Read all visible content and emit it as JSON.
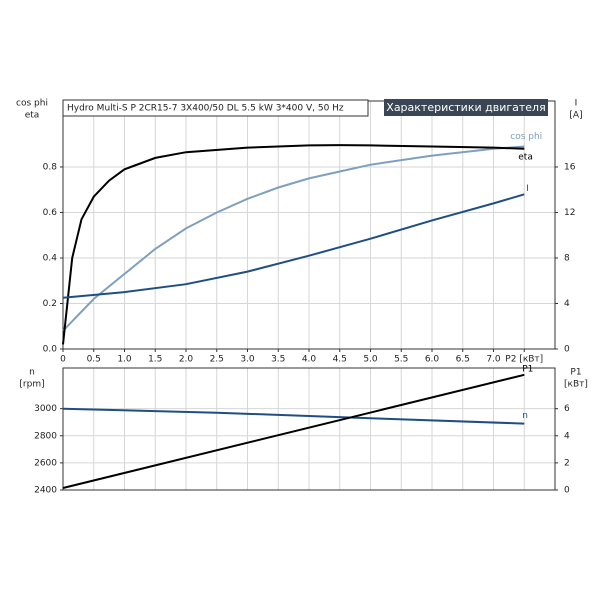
{
  "chart_data": [
    {
      "type": "line",
      "title": "Hydro Multi-S P 2CR15-7 3X400/50 DL   5.5 kW   3*400 V, 50 Hz",
      "subtitle": "Характеристики двигателя",
      "ylabel": [
        "cos phi",
        "eta"
      ],
      "y2label": [
        "I",
        "[A]"
      ],
      "xlim": [
        0,
        8
      ],
      "xticks": [
        0,
        0.5,
        {
          "value": 1,
          "label": "1.0"
        },
        1.5,
        {
          "value": 2,
          "label": "2.0"
        },
        2.5,
        {
          "value": 3,
          "label": "3.0"
        },
        3.5,
        {
          "value": 4,
          "label": "4.0"
        },
        4.5,
        {
          "value": 5,
          "label": "5.0"
        },
        5.5,
        {
          "value": 6,
          "label": "6.0"
        },
        6.5,
        {
          "value": 7,
          "label": "7.0"
        },
        {
          "value": 7.5,
          "label": "P2 [кВт]"
        }
      ],
      "ylim": [
        0,
        1.09
      ],
      "yticks": [
        {
          "value": 0,
          "label": "0.0"
        },
        0.2,
        0.4,
        0.6,
        0.8
      ],
      "y2lim": [
        0,
        21.8
      ],
      "y2ticks": [
        0,
        4,
        8,
        12,
        16
      ],
      "grid": true,
      "series": [
        {
          "name": "cos phi",
          "color": "#7f9fbf",
          "x": [
            0,
            0.5,
            1,
            1.5,
            2,
            2.5,
            3,
            3.5,
            4,
            4.5,
            5,
            6,
            7,
            7.5
          ],
          "values": [
            0.08,
            0.22,
            0.33,
            0.44,
            0.53,
            0.6,
            0.66,
            0.71,
            0.75,
            0.78,
            0.81,
            0.85,
            0.88,
            0.89
          ]
        },
        {
          "name": "eta",
          "color": "#000000",
          "x": [
            0,
            0.15,
            0.3,
            0.5,
            0.75,
            1,
            1.5,
            2,
            3,
            4,
            4.5,
            5,
            6,
            7,
            7.5
          ],
          "values": [
            0.02,
            0.4,
            0.57,
            0.67,
            0.74,
            0.79,
            0.84,
            0.865,
            0.885,
            0.895,
            0.896,
            0.895,
            0.89,
            0.885,
            0.88
          ]
        },
        {
          "name": "I",
          "color": "#1f4e85",
          "axis": "y2",
          "x": [
            0,
            1,
            2,
            3,
            4,
            5,
            6,
            7,
            7.5
          ],
          "values": [
            4.5,
            5.0,
            5.7,
            6.8,
            8.2,
            9.7,
            11.3,
            12.8,
            13.6
          ]
        }
      ]
    },
    {
      "type": "line",
      "ylabel": [
        "n",
        "[rpm]"
      ],
      "y2label": [
        "P1",
        "[кВт]"
      ],
      "xlim": [
        0,
        8
      ],
      "xgrid": [
        0,
        0.5,
        1,
        1.5,
        2,
        2.5,
        3,
        3.5,
        4,
        4.5,
        5,
        5.5,
        6,
        6.5,
        7,
        7.5
      ],
      "ylim": [
        2400,
        3300
      ],
      "yticks": [
        2400,
        2600,
        2800,
        3000
      ],
      "y2lim": [
        0,
        9
      ],
      "y2ticks": [
        0,
        2,
        4,
        6
      ],
      "grid": true,
      "series": [
        {
          "name": "n",
          "color": "#1f4e85",
          "x": [
            0,
            2.5,
            5,
            7.5
          ],
          "values": [
            3000,
            2970,
            2930,
            2890
          ]
        },
        {
          "name": "P1",
          "color": "#000000",
          "axis": "y2",
          "x": [
            0,
            7.5
          ],
          "values": [
            0.15,
            8.5
          ]
        }
      ]
    }
  ]
}
